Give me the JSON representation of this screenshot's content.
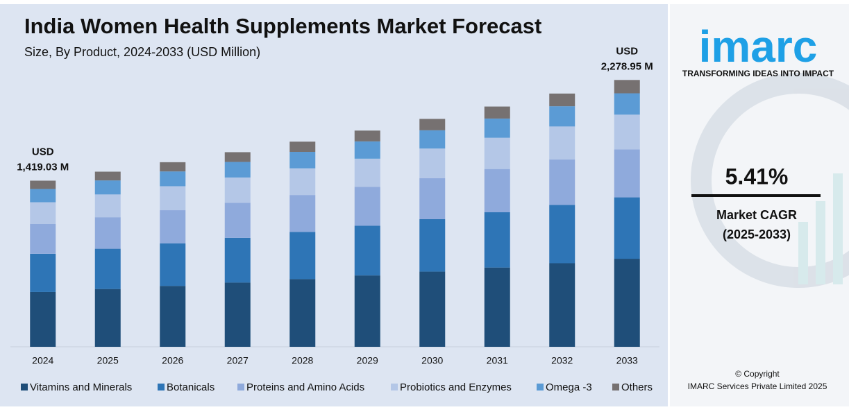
{
  "chart_data": {
    "type": "stacked-bar",
    "title": "India Women Health Supplements Market Forecast",
    "subtitle": "Size, By Product, 2024-2033 (USD Million)",
    "categories": [
      "2024",
      "2025",
      "2026",
      "2027",
      "2028",
      "2029",
      "2030",
      "2031",
      "2032",
      "2033"
    ],
    "series": [
      {
        "name": "Vitamins and Minerals",
        "color": "#1f4e79",
        "values": [
          468.3,
          493.6,
          520.3,
          548.5,
          578.2,
          609.4,
          642.4,
          677.2,
          713.8,
          752.1
        ]
      },
      {
        "name": "Botanicals",
        "color": "#2e75b6",
        "values": [
          326.4,
          344.0,
          362.6,
          382.3,
          403.0,
          424.8,
          447.7,
          472.0,
          497.5,
          524.2
        ]
      },
      {
        "name": "Proteins and Amino Acids",
        "color": "#8faadc",
        "values": [
          255.4,
          269.2,
          283.8,
          299.2,
          315.4,
          332.4,
          350.4,
          369.4,
          389.3,
          410.2
        ]
      },
      {
        "name": "Probiotics and Enzymes",
        "color": "#b4c7e7",
        "values": [
          184.5,
          194.5,
          205.0,
          216.1,
          227.8,
          240.1,
          253.1,
          266.8,
          281.2,
          296.3
        ]
      },
      {
        "name": "Omega -3",
        "color": "#5b9bd5",
        "values": [
          113.5,
          119.7,
          126.1,
          133.0,
          140.2,
          147.7,
          155.7,
          164.2,
          173.0,
          182.3
        ]
      },
      {
        "name": "Others",
        "color": "#767171",
        "values": [
          70.9,
          74.8,
          78.8,
          83.1,
          87.6,
          92.3,
          97.3,
          102.6,
          108.2,
          113.9
        ]
      }
    ],
    "ylim": [
      0,
      2500
    ],
    "total_labels": [
      {
        "x": "2024",
        "unit": "USD",
        "value": 1419.03,
        "label": "1,419.03 M"
      },
      {
        "x": "2033",
        "unit": "USD",
        "value": 2278.95,
        "label": "2,278.95 M"
      }
    ]
  },
  "sidebar": {
    "logo": "imarc",
    "tagline": "TRANSFORMING IDEAS INTO IMPACT",
    "cagr": "5.41%",
    "cagr_label": "Market CAGR",
    "cagr_period": "(2025-2033)",
    "copyright": "© Copyright",
    "company": "IMARC Services Private Limited 2025"
  }
}
